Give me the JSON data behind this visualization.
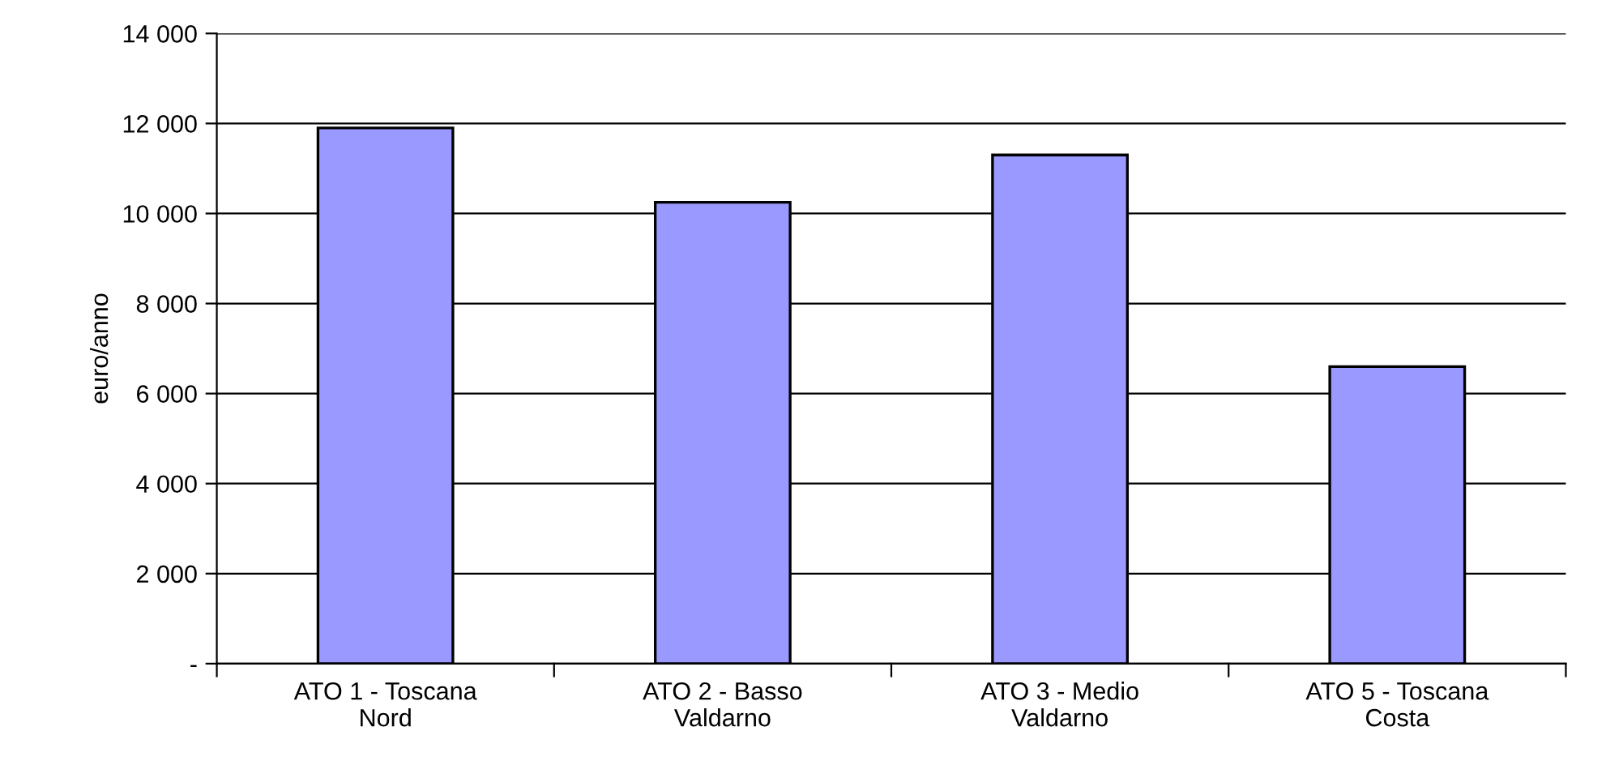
{
  "chart_data": {
    "type": "bar",
    "ylabel": "euro/anno",
    "categories": [
      "ATO 1 - Toscana\nNord",
      "ATO 2 - Basso\nValdarno",
      "ATO 3 - Medio\nValdarno",
      "ATO 5 - Toscana\nCosta"
    ],
    "values": [
      11900,
      10250,
      11300,
      6600
    ],
    "color": "#9999ff",
    "ylim": [
      0,
      14000
    ],
    "yticks": [
      {
        "value": 0,
        "label": "-"
      },
      {
        "value": 2000,
        "label": "2 000"
      },
      {
        "value": 4000,
        "label": "4 000"
      },
      {
        "value": 6000,
        "label": "6 000"
      },
      {
        "value": 8000,
        "label": "8 000"
      },
      {
        "value": 10000,
        "label": "10 000"
      },
      {
        "value": 12000,
        "label": "12 000"
      },
      {
        "value": 14000,
        "label": "14 000"
      }
    ],
    "grid": "y"
  }
}
